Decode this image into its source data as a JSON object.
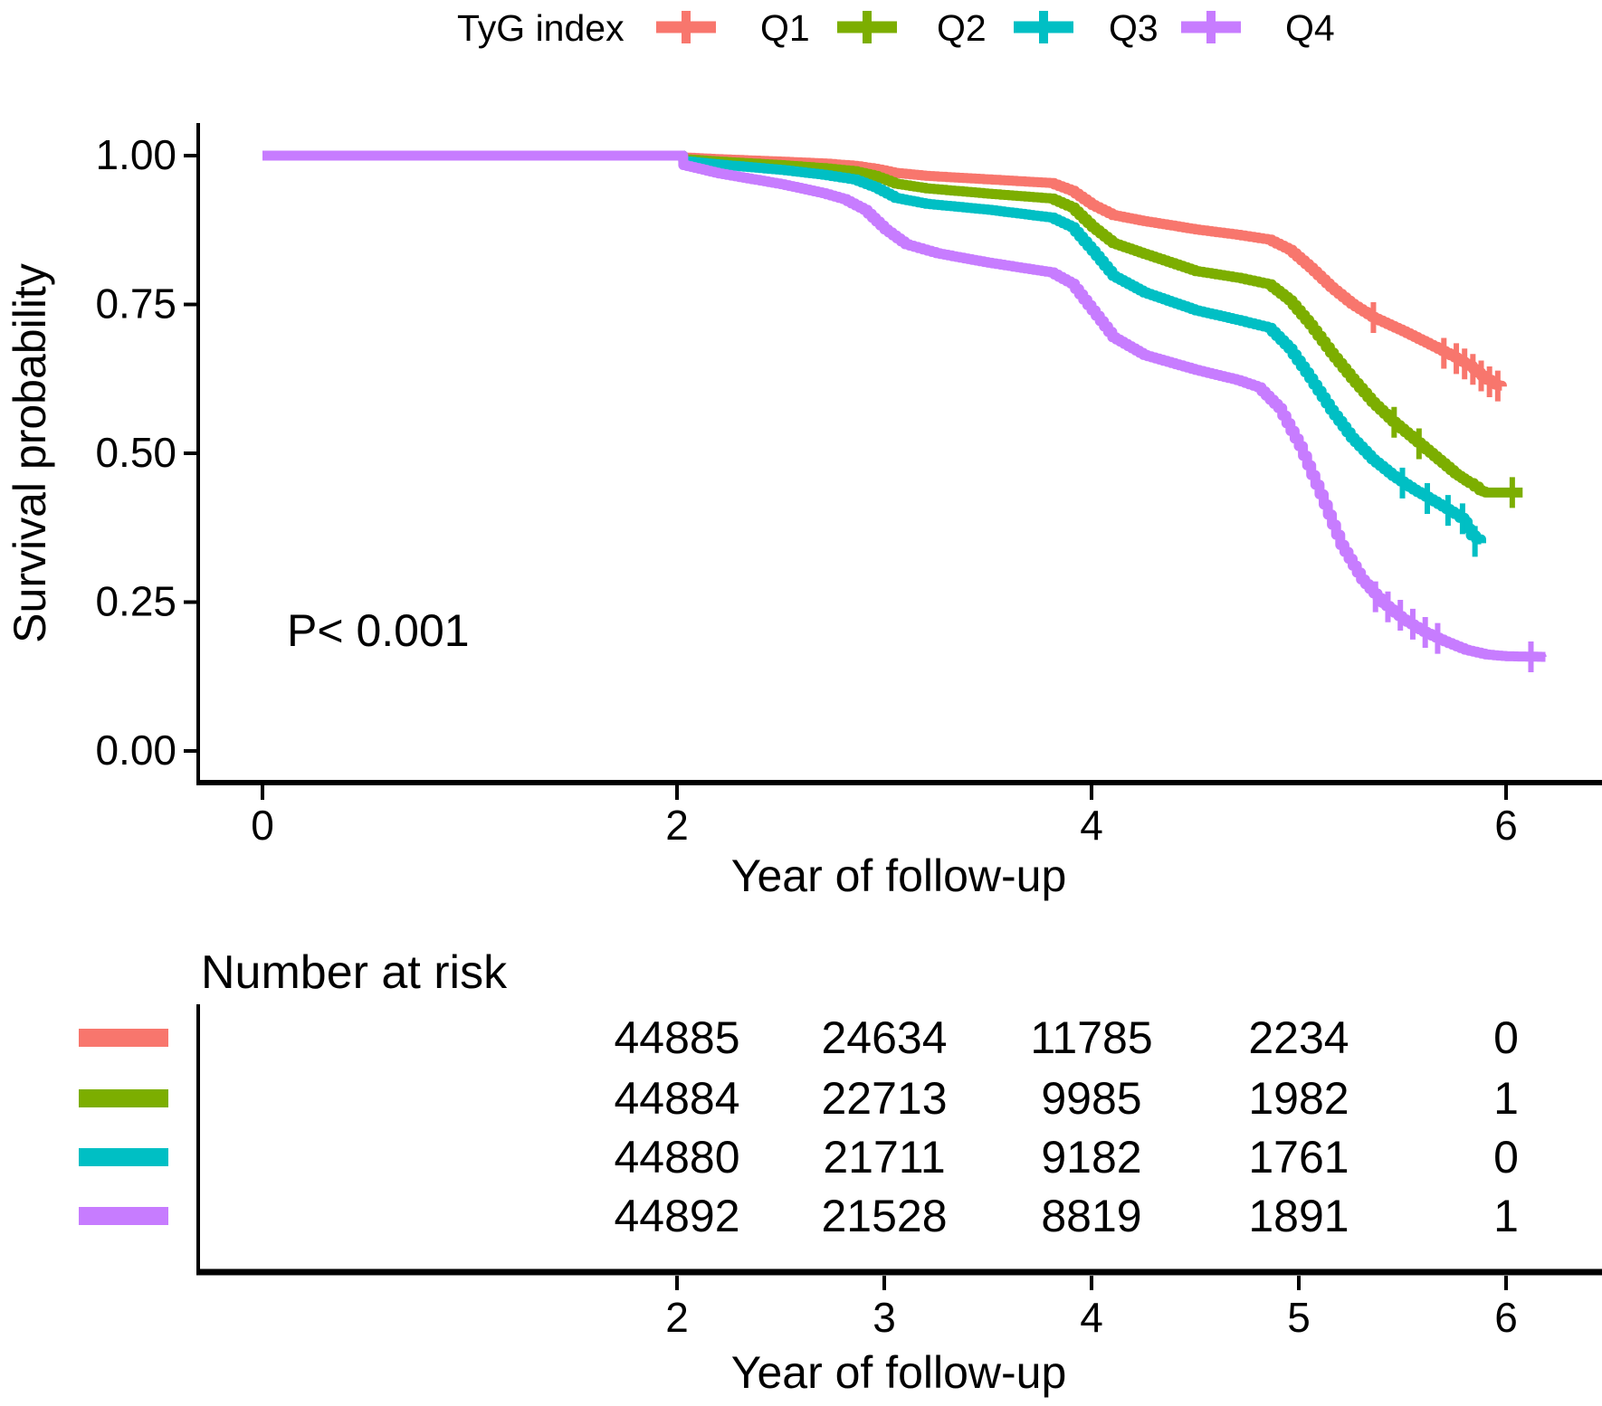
{
  "legend": {
    "title": "TyG index"
  },
  "axes": {
    "ylabel": "Survival probability",
    "xlabel": "Year of follow-up",
    "yticklabels": [
      "1.00",
      "0.75",
      "0.50",
      "0.25",
      "0.00"
    ],
    "ytickvalues": [
      1.0,
      0.75,
      0.5,
      0.25,
      0.0
    ],
    "xticklabels": [
      "0",
      "2",
      "4",
      "6"
    ],
    "xtickvalues": [
      0,
      2,
      4,
      6
    ]
  },
  "chart_data": {
    "type": "line",
    "subtype": "kaplan-meier-step",
    "title": "",
    "xlabel": "Year of follow-up",
    "ylabel": "Survival probability",
    "xlim": [
      0,
      6.4
    ],
    "ylim": [
      0,
      1.0
    ],
    "grid": false,
    "legend_position": "top",
    "annotation": "P< 0.001",
    "series": [
      {
        "name": "Q1",
        "color": "#F8766D",
        "points": [
          [
            0,
            1
          ],
          [
            2,
            1
          ],
          [
            2.03,
            0.997
          ],
          [
            2.2,
            0.994
          ],
          [
            2.5,
            0.99
          ],
          [
            2.7,
            0.987
          ],
          [
            2.85,
            0.983
          ],
          [
            2.95,
            0.978
          ],
          [
            3.05,
            0.971
          ],
          [
            3.2,
            0.966
          ],
          [
            3.5,
            0.96
          ],
          [
            3.8,
            0.954
          ],
          [
            3.9,
            0.941
          ],
          [
            4.0,
            0.917
          ],
          [
            4.1,
            0.9
          ],
          [
            4.25,
            0.89
          ],
          [
            4.5,
            0.876
          ],
          [
            4.7,
            0.867
          ],
          [
            4.85,
            0.859
          ],
          [
            4.95,
            0.842
          ],
          [
            5.05,
            0.812
          ],
          [
            5.15,
            0.779
          ],
          [
            5.25,
            0.751
          ],
          [
            5.35,
            0.729
          ],
          [
            5.5,
            0.705
          ],
          [
            5.65,
            0.679
          ],
          [
            5.75,
            0.661
          ],
          [
            5.82,
            0.647
          ],
          [
            5.88,
            0.63
          ],
          [
            5.93,
            0.617
          ],
          [
            5.98,
            0.612
          ]
        ],
        "censors": [
          [
            5.36,
            0.728
          ],
          [
            5.7,
            0.668
          ],
          [
            5.76,
            0.659
          ],
          [
            5.8,
            0.65
          ],
          [
            5.84,
            0.641
          ],
          [
            5.88,
            0.63
          ],
          [
            5.92,
            0.62
          ],
          [
            5.96,
            0.613
          ]
        ]
      },
      {
        "name": "Q2",
        "color": "#7CAE00",
        "points": [
          [
            0,
            1
          ],
          [
            2,
            1
          ],
          [
            2.03,
            0.994
          ],
          [
            2.2,
            0.99
          ],
          [
            2.5,
            0.984
          ],
          [
            2.7,
            0.979
          ],
          [
            2.85,
            0.974
          ],
          [
            2.95,
            0.966
          ],
          [
            3.05,
            0.953
          ],
          [
            3.2,
            0.945
          ],
          [
            3.5,
            0.936
          ],
          [
            3.8,
            0.928
          ],
          [
            3.9,
            0.913
          ],
          [
            4.0,
            0.88
          ],
          [
            4.1,
            0.853
          ],
          [
            4.25,
            0.835
          ],
          [
            4.5,
            0.806
          ],
          [
            4.7,
            0.795
          ],
          [
            4.85,
            0.784
          ],
          [
            4.95,
            0.757
          ],
          [
            5.05,
            0.716
          ],
          [
            5.15,
            0.669
          ],
          [
            5.25,
            0.626
          ],
          [
            5.35,
            0.586
          ],
          [
            5.45,
            0.553
          ],
          [
            5.55,
            0.524
          ],
          [
            5.65,
            0.495
          ],
          [
            5.75,
            0.466
          ],
          [
            5.82,
            0.45
          ],
          [
            5.87,
            0.438
          ],
          [
            5.9,
            0.434
          ],
          [
            6.08,
            0.434
          ]
        ],
        "censors": [
          [
            5.46,
            0.552
          ],
          [
            5.58,
            0.516
          ],
          [
            6.03,
            0.434
          ]
        ]
      },
      {
        "name": "Q3",
        "color": "#00BFC4",
        "points": [
          [
            0,
            1
          ],
          [
            2,
            1
          ],
          [
            2.03,
            0.991
          ],
          [
            2.2,
            0.985
          ],
          [
            2.5,
            0.976
          ],
          [
            2.7,
            0.968
          ],
          [
            2.85,
            0.96
          ],
          [
            2.95,
            0.947
          ],
          [
            3.05,
            0.929
          ],
          [
            3.2,
            0.919
          ],
          [
            3.5,
            0.909
          ],
          [
            3.8,
            0.896
          ],
          [
            3.9,
            0.88
          ],
          [
            4.0,
            0.84
          ],
          [
            4.1,
            0.798
          ],
          [
            4.25,
            0.77
          ],
          [
            4.5,
            0.74
          ],
          [
            4.7,
            0.724
          ],
          [
            4.85,
            0.711
          ],
          [
            4.95,
            0.676
          ],
          [
            5.05,
            0.626
          ],
          [
            5.15,
            0.573
          ],
          [
            5.25,
            0.526
          ],
          [
            5.35,
            0.49
          ],
          [
            5.45,
            0.462
          ],
          [
            5.55,
            0.439
          ],
          [
            5.65,
            0.419
          ],
          [
            5.75,
            0.398
          ],
          [
            5.8,
            0.385
          ],
          [
            5.83,
            0.362
          ],
          [
            5.88,
            0.349
          ]
        ],
        "censors": [
          [
            5.5,
            0.45
          ],
          [
            5.62,
            0.424
          ],
          [
            5.72,
            0.404
          ],
          [
            5.79,
            0.39
          ],
          [
            5.85,
            0.352
          ]
        ]
      },
      {
        "name": "Q4",
        "color": "#C77CFF",
        "points": [
          [
            0,
            1
          ],
          [
            2,
            1
          ],
          [
            2.03,
            0.984
          ],
          [
            2.2,
            0.97
          ],
          [
            2.5,
            0.952
          ],
          [
            2.7,
            0.937
          ],
          [
            2.8,
            0.927
          ],
          [
            2.9,
            0.909
          ],
          [
            3.0,
            0.876
          ],
          [
            3.1,
            0.851
          ],
          [
            3.25,
            0.836
          ],
          [
            3.5,
            0.82
          ],
          [
            3.8,
            0.804
          ],
          [
            3.9,
            0.785
          ],
          [
            4.0,
            0.74
          ],
          [
            4.1,
            0.695
          ],
          [
            4.25,
            0.665
          ],
          [
            4.5,
            0.64
          ],
          [
            4.7,
            0.623
          ],
          [
            4.8,
            0.611
          ],
          [
            4.9,
            0.576
          ],
          [
            5.0,
            0.512
          ],
          [
            5.1,
            0.431
          ],
          [
            5.2,
            0.346
          ],
          [
            5.3,
            0.288
          ],
          [
            5.4,
            0.249
          ],
          [
            5.5,
            0.221
          ],
          [
            5.6,
            0.2
          ],
          [
            5.7,
            0.184
          ],
          [
            5.8,
            0.17
          ],
          [
            5.9,
            0.162
          ],
          [
            6.0,
            0.159
          ],
          [
            6.19,
            0.158
          ]
        ],
        "censors": [
          [
            5.37,
            0.259
          ],
          [
            5.43,
            0.242
          ],
          [
            5.49,
            0.228
          ],
          [
            5.55,
            0.213
          ],
          [
            5.61,
            0.199
          ],
          [
            5.67,
            0.189
          ],
          [
            6.12,
            0.158
          ]
        ]
      }
    ]
  },
  "risk_table": {
    "title": "Number at risk",
    "xlabel": "Year of follow-up",
    "timepoints": [
      2,
      3,
      4,
      5,
      6
    ],
    "ticklabels": [
      "2",
      "3",
      "4",
      "5",
      "6"
    ],
    "rows": [
      {
        "name": "Q1",
        "color": "#F8766D",
        "values": [
          "44885",
          "24634",
          "11785",
          "2234",
          "0"
        ]
      },
      {
        "name": "Q2",
        "color": "#7CAE00",
        "values": [
          "44884",
          "22713",
          "9985",
          "1982",
          "1"
        ]
      },
      {
        "name": "Q3",
        "color": "#00BFC4",
        "values": [
          "44880",
          "21711",
          "9182",
          "1761",
          "0"
        ]
      },
      {
        "name": "Q4",
        "color": "#C77CFF",
        "values": [
          "44892",
          "21528",
          "8819",
          "1891",
          "1"
        ]
      }
    ]
  }
}
